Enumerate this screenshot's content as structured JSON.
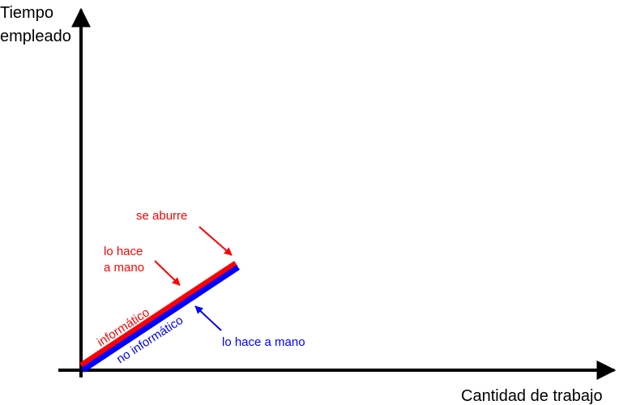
{
  "chart_data": {
    "type": "line",
    "xlabel": "Cantidad de trabajo",
    "ylabel_line1": "Tiempo",
    "ylabel_line2": "empleado",
    "grid": false,
    "series": [
      {
        "name": "informático",
        "color": "#ff0000",
        "label_color": "#ff0000"
      },
      {
        "name": "no informático",
        "color": "#0000ff",
        "label_color": "#0000ff"
      }
    ],
    "annotations": {
      "se_aburre": {
        "text": "se aburre",
        "color": "#ff0000"
      },
      "lo_hace_a_mano_red_line1": {
        "text": "lo hace",
        "color": "#ff0000"
      },
      "lo_hace_a_mano_red_line2": {
        "text": "a mano",
        "color": "#ff0000"
      },
      "lo_hace_a_mano_blue": {
        "text": "lo hace a mano",
        "color": "#0000ff"
      }
    }
  }
}
